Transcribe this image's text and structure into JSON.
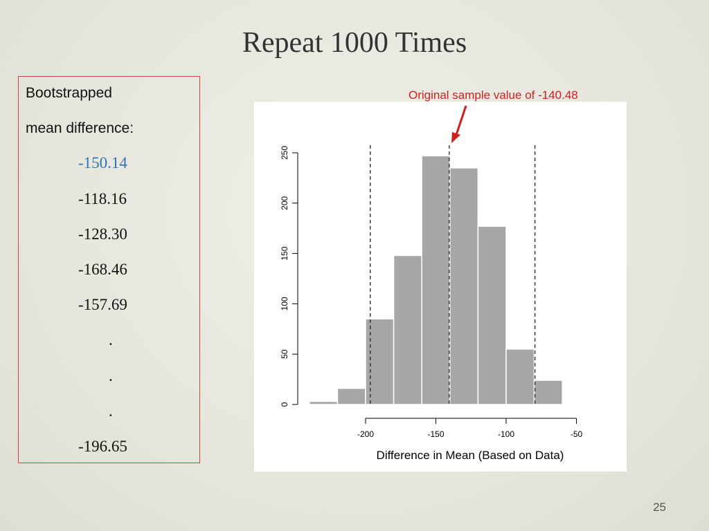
{
  "slide": {
    "title": "Repeat 1000 Times",
    "page_number": "25"
  },
  "sample_box": {
    "heading_line1": "Bootstrapped",
    "heading_line2": "mean difference:",
    "values": [
      "-150.14",
      "-118.16",
      "-128.30",
      "-168.46",
      "-157.69"
    ],
    "ellipsis": [
      ".",
      ".",
      "."
    ],
    "last_value": "-196.65",
    "highlight_color": "#2e74b5"
  },
  "annotation": {
    "text": "Original sample value of -140.48",
    "color": "#cc1f1f"
  },
  "chart_data": {
    "type": "bar",
    "subtype": "histogram",
    "xlabel": "Difference in Mean (Based on Data)",
    "ylabel": "",
    "x_ticks": [
      -200,
      -150,
      -100,
      -50
    ],
    "y_ticks": [
      0,
      50,
      100,
      150,
      200,
      250
    ],
    "ylim": [
      0,
      250
    ],
    "bin_edges": [
      -240,
      -220,
      -200,
      -180,
      -160,
      -140,
      -120,
      -100,
      -80,
      -60,
      -40
    ],
    "counts": [
      3,
      16,
      85,
      148,
      247,
      235,
      177,
      55,
      24,
      1
    ],
    "vertical_lines": [
      -196.65,
      -140.48,
      -79.5
    ],
    "vertical_line_style": "dashed",
    "bar_color": "#a6a6a6",
    "grid": false
  }
}
